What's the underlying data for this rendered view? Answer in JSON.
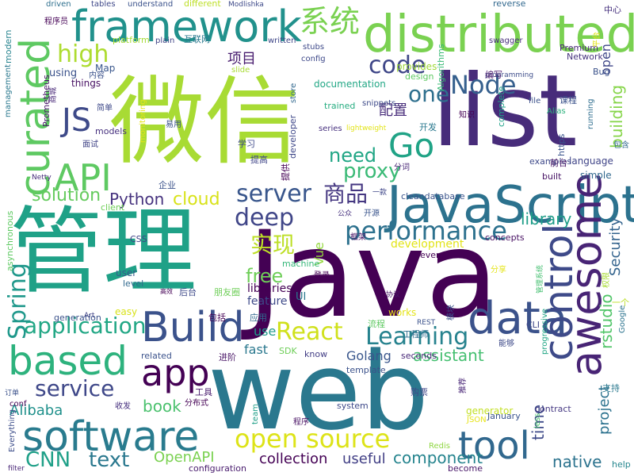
{
  "words": [
    {
      "text": "Java",
      "color": "#440154"
    },
    {
      "text": "web",
      "color": "#2a788e"
    },
    {
      "text": "list",
      "color": "#472c7a"
    },
    {
      "text": "微信",
      "color": "#a8db34"
    },
    {
      "text": "管理",
      "color": "#1fa187"
    },
    {
      "text": "JavaScript",
      "color": "#2c728e"
    },
    {
      "text": "distributed",
      "color": "#7ad151"
    },
    {
      "text": "framework",
      "color": "#21918c"
    },
    {
      "text": "awesome",
      "color": "#482475"
    },
    {
      "text": "software",
      "color": "#297b8e"
    },
    {
      "text": "data",
      "color": "#3b528b"
    },
    {
      "text": "control",
      "color": "#3e4a89"
    },
    {
      "text": "based",
      "color": "#2db27d"
    },
    {
      "text": "Build",
      "color": "#3b528b"
    },
    {
      "text": "curated",
      "color": "#5ec962"
    },
    {
      "text": "API",
      "color": "#5ec962"
    },
    {
      "text": "tool",
      "color": "#31688e"
    },
    {
      "text": "JS",
      "color": "#3e4a89"
    },
    {
      "text": "Go",
      "color": "#20a386"
    },
    {
      "text": "系统",
      "color": "#7ad151"
    },
    {
      "text": "app",
      "color": "#440154"
    },
    {
      "text": "high",
      "color": "#addc30"
    },
    {
      "text": "Node",
      "color": "#355f8d"
    },
    {
      "text": "code",
      "color": "#3f4788"
    },
    {
      "text": "one",
      "color": "#2e6f8e"
    },
    {
      "text": "open source",
      "color": "#dde318"
    },
    {
      "text": "performance",
      "color": "#2d718e"
    },
    {
      "text": "server",
      "color": "#39568c"
    },
    {
      "text": "deep",
      "color": "#404688"
    },
    {
      "text": "React",
      "color": "#d0e11c"
    },
    {
      "text": "Learning",
      "color": "#26828e"
    },
    {
      "text": "service",
      "color": "#3f4889"
    },
    {
      "text": "application",
      "color": "#22a785"
    },
    {
      "text": "商品",
      "color": "#453781"
    },
    {
      "text": "实现",
      "color": "#bddf26"
    },
    {
      "text": "Spring",
      "color": "#1f988b"
    },
    {
      "text": "CNN",
      "color": "#1fa088"
    },
    {
      "text": "text",
      "color": "#2a788e"
    },
    {
      "text": "proxy",
      "color": "#3aba76"
    },
    {
      "text": "need",
      "color": "#21a685"
    },
    {
      "text": "solution",
      "color": "#65cb5e"
    },
    {
      "text": "Python",
      "color": "#46327e"
    },
    {
      "text": "cloud",
      "color": "#d8e219"
    },
    {
      "text": "free",
      "color": "#6ece58"
    },
    {
      "text": "library",
      "color": "#1f9e89"
    },
    {
      "text": "native",
      "color": "#2c738e"
    },
    {
      "text": "component",
      "color": "#25848e"
    },
    {
      "text": "assistant",
      "color": "#44bf70"
    },
    {
      "text": "book",
      "color": "#4ac16d"
    },
    {
      "text": "collection",
      "color": "#440154"
    },
    {
      "text": "useful",
      "color": "#424086"
    },
    {
      "text": "OpenAPI",
      "color": "#7ad151"
    },
    {
      "text": "Alibaba",
      "color": "#21918c"
    },
    {
      "text": "project",
      "color": "#2c728e"
    },
    {
      "text": "time",
      "color": "#3e4a89"
    },
    {
      "text": "rstudio",
      "color": "#52c569"
    },
    {
      "text": "building",
      "color": "#86d549"
    },
    {
      "text": "open",
      "color": "#3f4788"
    },
    {
      "text": "项目",
      "color": "#481d6f"
    },
    {
      "text": "配置",
      "color": "#472c7a"
    },
    {
      "text": "Security",
      "color": "#33638d"
    },
    {
      "text": "Vue",
      "color": "#95d840"
    },
    {
      "text": "Golang",
      "color": "#39568c"
    },
    {
      "text": "fast",
      "color": "#2a788e"
    },
    {
      "text": "use",
      "color": "#1f9a8a"
    },
    {
      "text": "feature",
      "color": "#3e4a89"
    },
    {
      "text": "libraries",
      "color": "#440154"
    },
    {
      "text": "development",
      "color": "#e2e418"
    },
    {
      "text": "documentation",
      "color": "#22a785"
    },
    {
      "text": "provides",
      "color": "#a0da39"
    },
    {
      "text": "Algorithms",
      "color": "#3aba76"
    },
    {
      "text": "language",
      "color": "#404588"
    },
    {
      "text": "simple",
      "color": "#31688e"
    },
    {
      "text": "Premium",
      "color": "#482878"
    },
    {
      "text": "Network",
      "color": "#46337e"
    },
    {
      "text": "complete",
      "color": "#1fa188"
    },
    {
      "text": "examples",
      "color": "#3e4989"
    },
    {
      "text": "running",
      "color": "#2e6d8e"
    },
    {
      "text": "built",
      "color": "#471365"
    },
    {
      "text": "configuration",
      "color": "#481b6d"
    },
    {
      "text": "become",
      "color": "#481769"
    },
    {
      "text": "help",
      "color": "#24868e"
    },
    {
      "text": "works",
      "color": "#e5e419"
    },
    {
      "text": "template",
      "color": "#3b528b"
    },
    {
      "text": "seconds",
      "color": "#482878"
    },
    {
      "text": "machine",
      "color": "#35b779"
    },
    {
      "text": "concepts",
      "color": "#471063"
    },
    {
      "text": "event",
      "color": "#440154"
    },
    {
      "text": "user",
      "color": "#375a8c"
    },
    {
      "text": "level",
      "color": "#30698e"
    },
    {
      "text": "client",
      "color": "#6ece58"
    },
    {
      "text": "CSS",
      "color": "#414487"
    },
    {
      "text": "generator",
      "color": "#c2df23"
    },
    {
      "text": "contract",
      "color": "#453882"
    },
    {
      "text": "January",
      "color": "#3a548c"
    },
    {
      "text": "system",
      "color": "#3e4989"
    },
    {
      "text": "Redis",
      "color": "#90d743"
    },
    {
      "text": "less",
      "color": "#4ac16d"
    },
    {
      "text": "JSON",
      "color": "#e7e419"
    },
    {
      "text": "team",
      "color": "#1f9f88"
    },
    {
      "text": "know",
      "color": "#433e85"
    },
    {
      "text": "SDK",
      "color": "#6ece58"
    },
    {
      "text": "related",
      "color": "#3b528b"
    },
    {
      "text": "generation",
      "color": "#3b528b"
    },
    {
      "text": "easy",
      "color": "#d8e219"
    },
    {
      "text": "Art",
      "color": "#414487"
    },
    {
      "text": "UI",
      "color": "#2a788e"
    },
    {
      "text": "REST",
      "color": "#3b528b"
    },
    {
      "text": "CLI",
      "color": "#3f4889"
    },
    {
      "text": "progressive",
      "color": "#21a685"
    },
    {
      "text": "Google",
      "color": "#2c738e"
    },
    {
      "text": "Everything",
      "color": "#3d4e8a"
    },
    {
      "text": "filter",
      "color": "#482576"
    },
    {
      "text": "conf",
      "color": "#440154"
    },
    {
      "text": "asynchronous",
      "color": "#5ec962"
    },
    {
      "text": "Netty",
      "color": "#472d7b"
    },
    {
      "text": "management",
      "color": "#2a788e"
    },
    {
      "text": "modern",
      "color": "#25838e"
    },
    {
      "text": "Prometheus",
      "color": "#481668"
    },
    {
      "text": "using",
      "color": "#3b528b"
    },
    {
      "text": "things",
      "color": "#471063"
    },
    {
      "text": "Map",
      "color": "#39568c"
    },
    {
      "text": "models",
      "color": "#46307e"
    },
    {
      "text": "monitoring",
      "color": "#e5e419"
    },
    {
      "text": "driven",
      "color": "#2e6f8e"
    },
    {
      "text": "tables",
      "color": "#3f4889"
    },
    {
      "text": "understand",
      "color": "#3b528b"
    },
    {
      "text": "different",
      "color": "#bddf26"
    },
    {
      "text": "Modlishka",
      "color": "#3e4a89"
    },
    {
      "text": "reverse",
      "color": "#31688e"
    },
    {
      "text": "platform",
      "color": "#a5db36"
    },
    {
      "text": "plain",
      "color": "#414487"
    },
    {
      "text": "written",
      "color": "#3f4788"
    },
    {
      "text": "stubs",
      "color": "#3e4989"
    },
    {
      "text": "config",
      "color": "#3e4989"
    },
    {
      "text": "slide",
      "color": "#a8db34"
    },
    {
      "text": "swagger",
      "color": "#472d7b"
    },
    {
      "text": "design",
      "color": "#5ec962"
    },
    {
      "text": "programming",
      "color": "#3d4d8a"
    },
    {
      "text": "Bug",
      "color": "#3b528b"
    },
    {
      "text": "file",
      "color": "#3b528b"
    },
    {
      "text": "Alias",
      "color": "#2db27d"
    },
    {
      "text": "https",
      "color": "#3a548c"
    },
    {
      "text": "trained",
      "color": "#27ad81"
    },
    {
      "text": "snippets",
      "color": "#3e4a89"
    },
    {
      "text": "series",
      "color": "#46307e"
    },
    {
      "text": "lightweight",
      "color": "#e2e418"
    },
    {
      "text": "developer",
      "color": "#3f4889"
    },
    {
      "text": "store",
      "color": "#31688e"
    },
    {
      "text": "cleandatabase",
      "color": "#3a548c"
    },
    {
      "text": "程序员",
      "color": "#440154"
    },
    {
      "text": "互联网",
      "color": "#2a788e"
    },
    {
      "text": "内容",
      "color": "#3b528b"
    },
    {
      "text": "中心",
      "color": "#46307e"
    },
    {
      "text": "编写",
      "color": "#481b6d"
    },
    {
      "text": "课程",
      "color": "#3b528b"
    },
    {
      "text": "知识",
      "color": "#440154"
    },
    {
      "text": "开发",
      "color": "#2a788e"
    },
    {
      "text": "前台",
      "color": "#471365"
    },
    {
      "text": "包含",
      "color": "#31688e"
    },
    {
      "text": "商城",
      "color": "#482878"
    },
    {
      "text": "简单",
      "color": "#3e4989"
    },
    {
      "text": "易用",
      "color": "#3b528b"
    },
    {
      "text": "面试",
      "color": "#414487"
    },
    {
      "text": "学习",
      "color": "#3e4a89"
    },
    {
      "text": "提高",
      "color": "#404688"
    },
    {
      "text": "分词",
      "color": "#482576"
    },
    {
      "text": "提供",
      "color": "#440154"
    },
    {
      "text": "企业",
      "color": "#3b528b"
    },
    {
      "text": "一款",
      "color": "#3f4788"
    },
    {
      "text": "公众",
      "color": "#46307e"
    },
    {
      "text": "开源",
      "color": "#3a548c"
    },
    {
      "text": "框架",
      "color": "#471063"
    },
    {
      "text": "后台",
      "color": "#3e4989"
    },
    {
      "text": "朋友圈",
      "color": "#6ece58"
    },
    {
      "text": "登录",
      "color": "#440154"
    },
    {
      "text": "分享",
      "color": "#e5e419"
    },
    {
      "text": "管理系统",
      "color": "#44bf70"
    },
    {
      "text": "权限",
      "color": "#a8db34"
    },
    {
      "text": "协议",
      "color": "#481668"
    },
    {
      "text": "模块",
      "color": "#3b528b"
    },
    {
      "text": "流程",
      "color": "#5ec962"
    },
    {
      "text": "工程师",
      "color": "#2e6d8e"
    },
    {
      "text": "包括",
      "color": "#440154"
    },
    {
      "text": "应用",
      "color": "#31688e"
    },
    {
      "text": "进阶",
      "color": "#471365"
    },
    {
      "text": "能够",
      "color": "#3e4a89"
    },
    {
      "text": "推荐",
      "color": "#482576"
    },
    {
      "text": "支持",
      "color": "#2a788e"
    },
    {
      "text": "购票",
      "color": "#3f4788"
    },
    {
      "text": "工具",
      "color": "#481b6d"
    },
    {
      "text": "分布式",
      "color": "#440154"
    },
    {
      "text": "收发",
      "color": "#46307e"
    },
    {
      "text": "订单",
      "color": "#3b528b"
    },
    {
      "text": "程序",
      "color": "#471063"
    },
    {
      "text": "一个",
      "color": "#bddf26"
    },
    {
      "text": "高效",
      "color": "#440154"
    },
    {
      "text": "平台",
      "color": "#e2e418"
    }
  ]
}
